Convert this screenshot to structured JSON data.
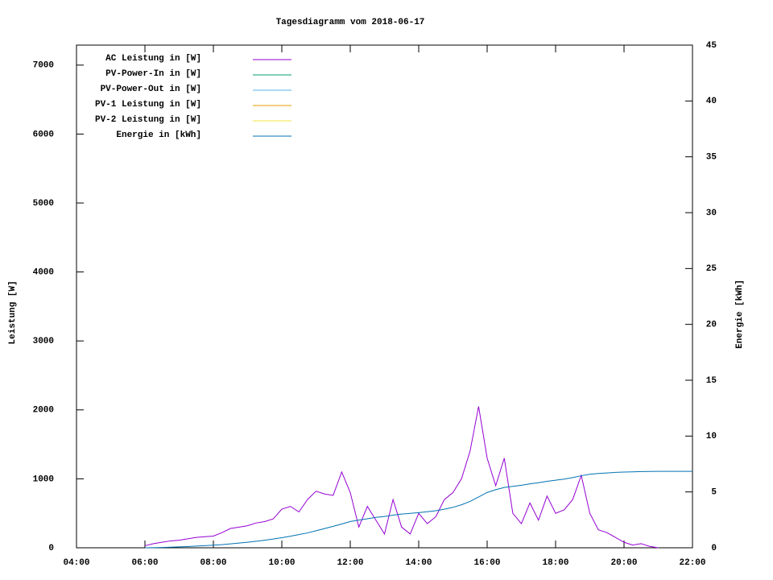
{
  "chart_data": {
    "type": "line",
    "title": "Tagesdiagramm vom 2018-06-17",
    "ylabel": "Leistung [W]",
    "y2label": "Energie [kWh]",
    "xlim": [
      4,
      22
    ],
    "xticks": [
      {
        "value": 4,
        "label": "04:00"
      },
      {
        "value": 6,
        "label": "06:00"
      },
      {
        "value": 8,
        "label": "08:00"
      },
      {
        "value": 10,
        "label": "10:00"
      },
      {
        "value": 12,
        "label": "12:00"
      },
      {
        "value": 14,
        "label": "14:00"
      },
      {
        "value": 16,
        "label": "16:00"
      },
      {
        "value": 18,
        "label": "18:00"
      },
      {
        "value": 20,
        "label": "20:00"
      },
      {
        "value": 22,
        "label": "22:00"
      }
    ],
    "ylim": [
      0,
      7290
    ],
    "yticks": [
      0,
      1000,
      2000,
      3000,
      4000,
      5000,
      6000,
      7000
    ],
    "y2lim": [
      0,
      45
    ],
    "y2ticks": [
      0,
      5,
      10,
      15,
      20,
      25,
      30,
      35,
      40,
      45
    ],
    "legend": "top-left",
    "x": [
      6,
      6.25,
      6.5,
      6.75,
      7,
      7.25,
      7.5,
      7.75,
      8,
      8.25,
      8.5,
      8.75,
      9,
      9.25,
      9.5,
      9.75,
      10,
      10.25,
      10.5,
      10.75,
      11,
      11.25,
      11.5,
      11.75,
      12,
      12.25,
      12.5,
      12.75,
      13,
      13.25,
      13.5,
      13.75,
      14,
      14.25,
      14.5,
      14.75,
      15,
      15.25,
      15.5,
      15.75,
      16,
      16.25,
      16.5,
      16.75,
      17,
      17.25,
      17.5,
      17.75,
      18,
      18.25,
      18.5,
      18.75,
      19,
      19.25,
      19.5,
      19.75,
      20,
      20.25,
      20.5,
      20.75,
      21,
      21.25,
      21.5,
      21.75,
      22
    ],
    "series": [
      {
        "name": "AC Leistung in [W]",
        "color": "#9400d3",
        "values": [
          30,
          60,
          80,
          100,
          110,
          130,
          150,
          160,
          170,
          220,
          280,
          300,
          320,
          360,
          380,
          420,
          560,
          600,
          520,
          700,
          820,
          780,
          760,
          1100,
          800,
          300,
          600,
          400,
          200,
          700,
          300,
          200,
          500,
          350,
          450,
          700,
          800,
          1000,
          1400,
          2050,
          1300,
          900,
          1300,
          500,
          350,
          650,
          400,
          750,
          500,
          550,
          700,
          1050,
          500,
          260,
          220,
          150,
          80,
          40,
          60,
          20,
          0,
          null,
          null,
          null,
          null
        ]
      },
      {
        "name": "PV-Power-In in [W]",
        "color": "#009e73",
        "values": [
          null,
          null,
          null,
          null,
          null,
          null,
          null,
          null,
          null,
          null,
          null,
          null,
          null,
          null,
          null,
          null,
          null,
          null,
          null,
          null,
          null,
          null,
          null,
          null,
          null,
          null,
          null,
          null,
          null,
          null,
          null,
          null,
          null,
          null,
          null,
          null,
          null,
          null,
          null,
          null,
          null,
          null,
          null,
          null,
          null,
          null,
          null,
          null,
          null,
          null,
          null,
          null,
          null,
          null,
          null,
          null,
          null,
          null,
          null,
          null,
          null,
          null,
          null,
          null,
          null
        ]
      },
      {
        "name": "PV-Power-Out in [W]",
        "color": "#56b4e9",
        "values": [
          null,
          null,
          null,
          null,
          null,
          null,
          null,
          null,
          null,
          null,
          null,
          null,
          null,
          null,
          null,
          null,
          null,
          null,
          null,
          null,
          null,
          null,
          null,
          null,
          null,
          null,
          null,
          null,
          null,
          null,
          null,
          null,
          null,
          null,
          null,
          null,
          null,
          null,
          null,
          null,
          null,
          null,
          null,
          null,
          null,
          null,
          null,
          null,
          null,
          null,
          null,
          null,
          null,
          null,
          null,
          null,
          null,
          null,
          null,
          null,
          null,
          null,
          null,
          null,
          null
        ]
      },
      {
        "name": "PV-1 Leistung in [W]",
        "color": "#e69f00",
        "values": [
          null,
          null,
          null,
          null,
          null,
          null,
          null,
          null,
          null,
          null,
          null,
          null,
          null,
          null,
          null,
          null,
          null,
          null,
          null,
          null,
          null,
          null,
          null,
          null,
          null,
          null,
          null,
          null,
          null,
          null,
          null,
          null,
          null,
          null,
          null,
          null,
          null,
          null,
          null,
          null,
          null,
          null,
          null,
          null,
          null,
          null,
          null,
          null,
          null,
          null,
          null,
          null,
          null,
          null,
          null,
          null,
          null,
          null,
          null,
          null,
          null,
          null,
          null,
          null,
          null
        ]
      },
      {
        "name": "PV-2 Leistung in [W]",
        "color": "#f0e442",
        "values": [
          null,
          null,
          null,
          null,
          null,
          null,
          null,
          null,
          null,
          null,
          null,
          null,
          null,
          null,
          null,
          null,
          null,
          null,
          null,
          null,
          null,
          null,
          null,
          null,
          null,
          null,
          null,
          null,
          null,
          null,
          null,
          null,
          null,
          null,
          null,
          null,
          null,
          null,
          null,
          null,
          null,
          null,
          null,
          null,
          null,
          null,
          null,
          null,
          null,
          null,
          null,
          null,
          null,
          null,
          null,
          null,
          null,
          null,
          null,
          null,
          null,
          null,
          null,
          null,
          null
        ]
      },
      {
        "name": "Energie in [kWh]",
        "color": "#0072b2",
        "axis": "y2",
        "values": [
          0,
          0.01,
          0.03,
          0.05,
          0.08,
          0.11,
          0.15,
          0.19,
          0.23,
          0.28,
          0.35,
          0.42,
          0.5,
          0.59,
          0.68,
          0.78,
          0.9,
          1.04,
          1.18,
          1.33,
          1.52,
          1.72,
          1.92,
          2.13,
          2.35,
          2.48,
          2.6,
          2.72,
          2.8,
          2.92,
          3.02,
          3.08,
          3.15,
          3.23,
          3.32,
          3.45,
          3.62,
          3.85,
          4.15,
          4.55,
          4.95,
          5.2,
          5.4,
          5.5,
          5.6,
          5.72,
          5.82,
          5.95,
          6.05,
          6.15,
          6.28,
          6.45,
          6.58,
          6.65,
          6.7,
          6.75,
          6.78,
          6.8,
          6.82,
          6.83,
          6.84,
          6.84,
          6.84,
          6.84,
          6.84
        ]
      }
    ]
  }
}
